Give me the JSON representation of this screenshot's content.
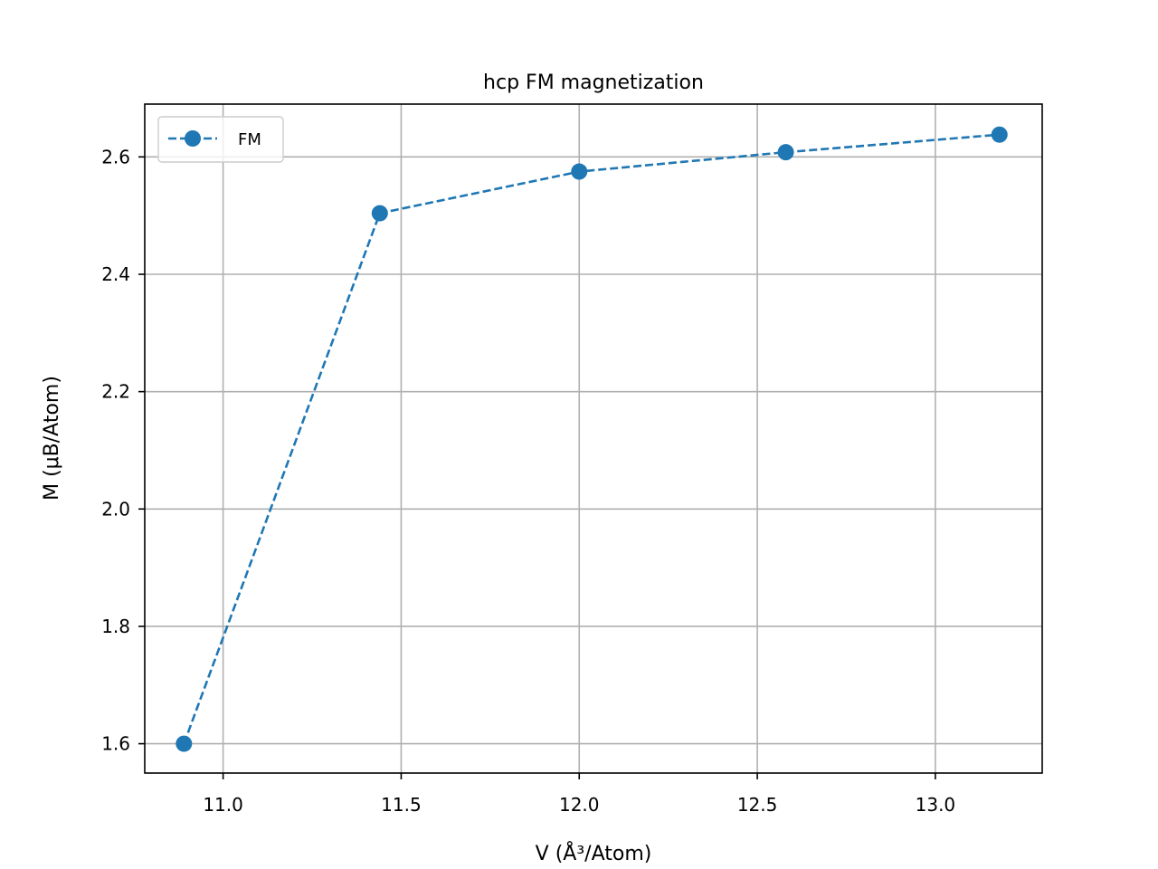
{
  "chart_data": {
    "type": "line",
    "title": "hcp FM magnetization",
    "xlabel": "V (Å³/Atom)",
    "ylabel": "M (μB/Atom)",
    "xlim": [
      10.78,
      13.3
    ],
    "ylim": [
      1.55,
      2.69
    ],
    "xticks": [
      11.0,
      11.5,
      12.0,
      12.5,
      13.0
    ],
    "xtick_labels": [
      "11.0",
      "11.5",
      "12.0",
      "12.5",
      "13.0"
    ],
    "yticks": [
      1.6,
      1.8,
      2.0,
      2.2,
      2.4,
      2.6
    ],
    "ytick_labels": [
      "1.6",
      "1.8",
      "2.0",
      "2.2",
      "2.4",
      "2.6"
    ],
    "grid": true,
    "legend_position": "top-left",
    "series": [
      {
        "name": "FM",
        "color": "#1f77b4",
        "line_style": "dashed",
        "marker": "circle",
        "x": [
          10.89,
          11.44,
          12.0,
          12.58,
          13.18
        ],
        "y": [
          1.6,
          2.504,
          2.575,
          2.608,
          2.638
        ]
      }
    ]
  }
}
